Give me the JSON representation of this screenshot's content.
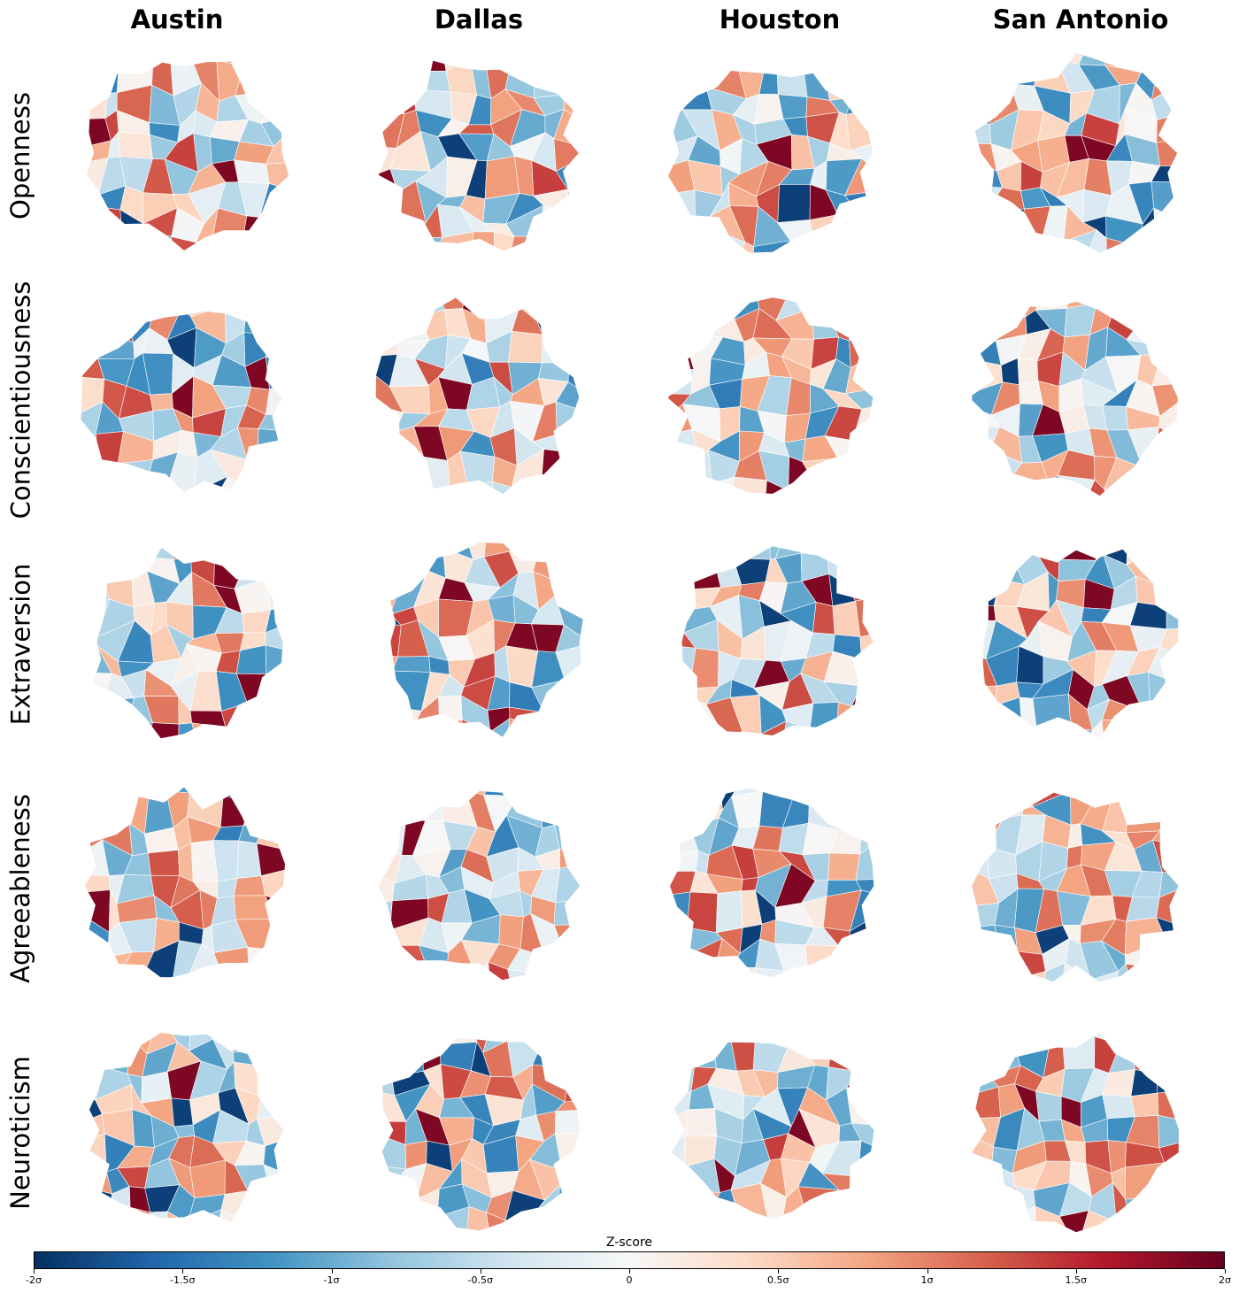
{
  "columns": [
    "Austin",
    "Dallas",
    "Houston",
    "San Antonio"
  ],
  "rows": [
    "Openness",
    "Conscientiousness",
    "Extraversion",
    "Agreeableness",
    "Neuroticism"
  ],
  "colorbar": {
    "title": "Z-score",
    "min": -2,
    "max": 2,
    "ticks": [
      "-2σ",
      "-1.5σ",
      "-1σ",
      "-0.5σ",
      "0",
      "0.5σ",
      "1σ",
      "1.5σ",
      "2σ"
    ],
    "colormap": "RdBu_r",
    "stops": [
      "#053061",
      "#2166ac",
      "#4393c3",
      "#92c5de",
      "#d1e5f0",
      "#f7f7f7",
      "#fddbc7",
      "#f4a582",
      "#d6604d",
      "#b2182b",
      "#67001f"
    ]
  }
}
